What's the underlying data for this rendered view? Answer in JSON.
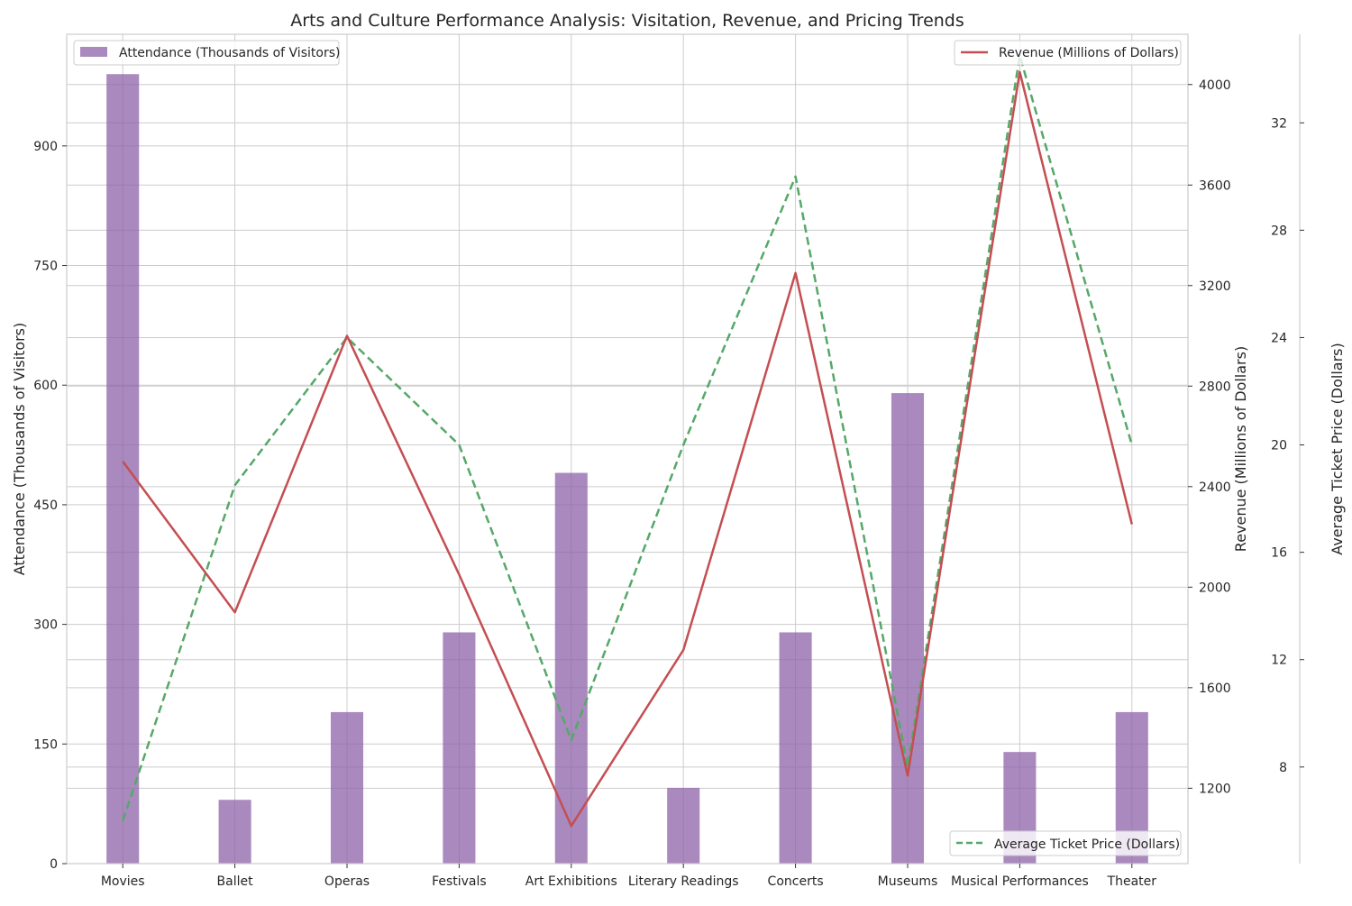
{
  "chart_data": {
    "type": "bar",
    "title": "Arts and Culture Performance Analysis: Visitation, Revenue, and Pricing Trends",
    "categories": [
      "Movies",
      "Ballet",
      "Operas",
      "Festivals",
      "Art Exhibitions",
      "Literary Readings",
      "Concerts",
      "Museums",
      "Musical Performances",
      "Theater"
    ],
    "grid": true,
    "series": [
      {
        "name": "Attendance (Thousands of Visitors)",
        "type": "bar",
        "axis": "left",
        "color": "#8e63a8",
        "values": [
          990,
          80,
          190,
          290,
          490,
          95,
          290,
          590,
          140,
          190
        ]
      },
      {
        "name": "Revenue (Millions of Dollars)",
        "type": "line",
        "axis": "right",
        "color": "#c44e52",
        "values": [
          2500,
          1900,
          3000,
          2050,
          1050,
          1750,
          3250,
          1250,
          4050,
          2250
        ]
      },
      {
        "name": "Average Ticket Price (Dollars)",
        "type": "line",
        "linestyle": "dashed",
        "axis": "far-right",
        "color": "#55a868",
        "values": [
          6,
          18.5,
          24,
          20,
          9,
          20,
          30,
          8,
          34.5,
          20
        ]
      }
    ],
    "axes": {
      "left": {
        "label": "Attendance (Thousands of Visitors)",
        "label_color": "#0000cd",
        "ylim": [
          0,
          1040
        ],
        "ticks": [
          0,
          150,
          300,
          450,
          600,
          750,
          900
        ]
      },
      "right": {
        "label": "Revenue (Millions of Dollars)",
        "label_color": "#f0e6a0",
        "ylim": [
          900,
          4200
        ],
        "ticks": [
          1200,
          1600,
          2000,
          2400,
          2800,
          3200,
          3600,
          4000
        ]
      },
      "far_right": {
        "label": "Average Ticket Price (Dollars)",
        "label_color": "#9acd32",
        "ylim": [
          4.4,
          35.3
        ],
        "ticks": [
          8,
          12,
          16,
          20,
          24,
          28,
          32
        ]
      }
    },
    "legends": {
      "bar": "upper left",
      "revenue": "upper right",
      "price": "lower right"
    }
  }
}
